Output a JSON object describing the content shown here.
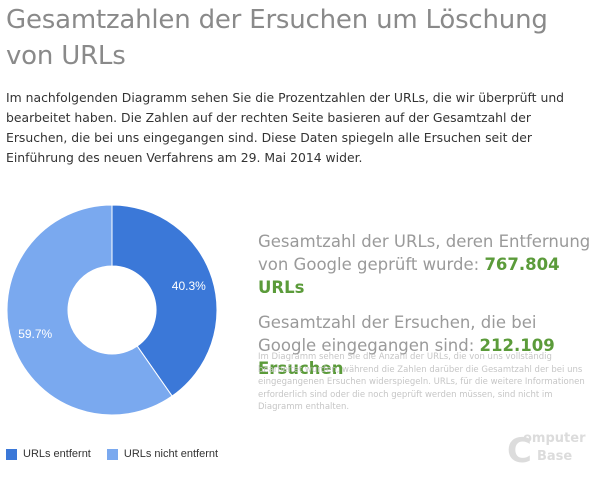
{
  "page": {
    "title": "Gesamtzahlen der Ersuchen um Löschung von URLs",
    "intro": "Im nachfolgenden Diagramm sehen Sie die Prozentzahlen der URLs, die wir überprüft und bearbeitet haben. Die Zahlen auf der rechten Seite basieren auf der Gesamtzahl der Ersuchen, die bei uns eingegangen sind. Diese Daten spiegeln alle Ersuchen seit der Einführung des neuen Verfahrens am 29. Mai 2014 wider."
  },
  "stats": {
    "urls_label": "Gesamtzahl der URLs, deren Entfernung von Google geprüft wurde:",
    "urls_value": "767.804 URLs",
    "requests_label": "Gesamtzahl der Ersuchen, die bei Google eingegangen sind:",
    "requests_value": "212.109 Ersuchen",
    "note": "Im Diagramm sehen Sie die Anzahl der URLs, die von uns vollständig bearbeitet wurden, während die Zahlen darüber die Gesamtzahl der bei uns eingegangenen Ersuchen widerspiegeln. URLs, für die weitere Informationen erforderlich sind oder die noch geprüft werden müssen, sind nicht im Diagramm enthalten."
  },
  "chart_data": {
    "type": "pie",
    "donut": true,
    "categories": [
      "URLs entfernt",
      "URLs nicht entfernt"
    ],
    "values": [
      40.3,
      59.7
    ],
    "data_labels": [
      "40.3%",
      "59.7%"
    ],
    "colors": [
      "#3b78d8",
      "#7aa9ef"
    ],
    "legend_position": "bottom-left"
  },
  "watermark": {
    "line1": "Computer",
    "line2": "Base",
    "initials": "CB"
  }
}
